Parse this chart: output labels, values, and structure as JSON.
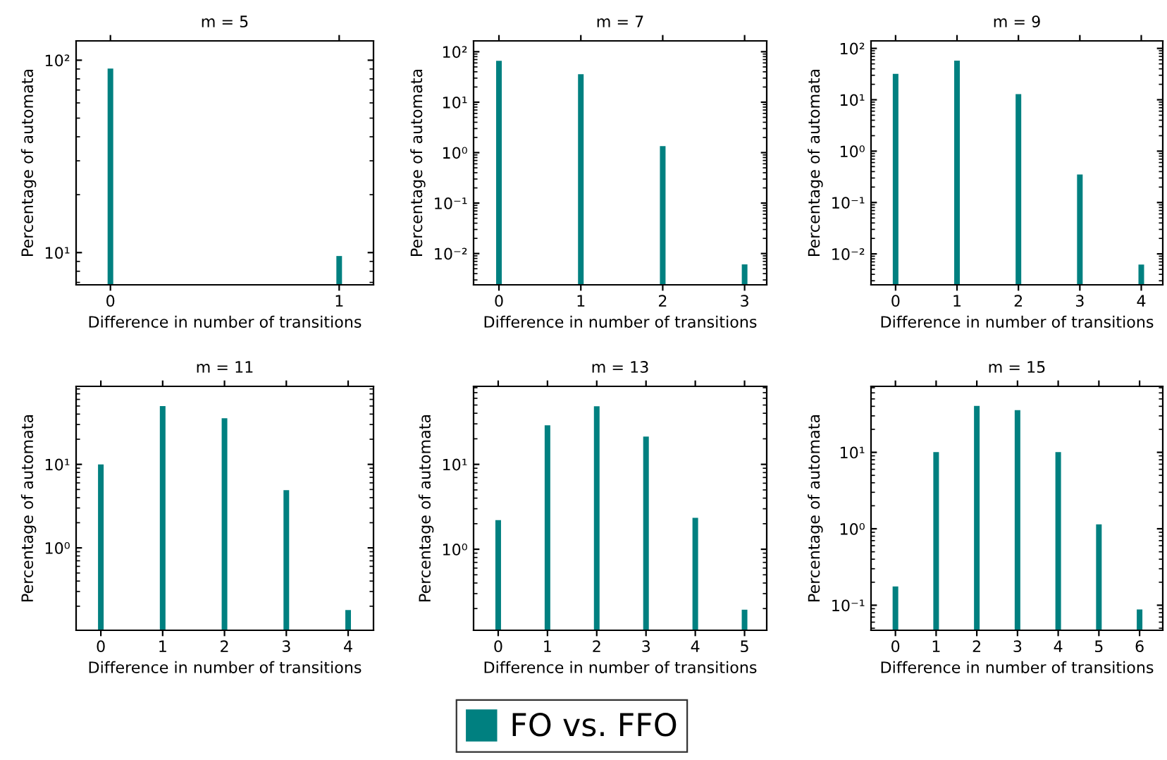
{
  "chart_data": [
    {
      "type": "bar",
      "title": "m = 5",
      "xlabel": "Difference in number of transitions",
      "ylabel": "Percentage of automata",
      "x": [
        0,
        1
      ],
      "series": [
        {
          "name": "FO vs. FFO",
          "color": "#008080",
          "values": [
            90.4,
            9.6
          ]
        }
      ],
      "xlim": [
        -0.15,
        1.15
      ],
      "xticks": [
        0,
        1
      ],
      "ylim": [
        6.8,
        126
      ],
      "yticks": [
        {
          "value": 10,
          "label": "10¹"
        },
        {
          "value": 100,
          "label": "10²"
        }
      ],
      "log": "y",
      "legend": "bottom"
    },
    {
      "type": "bar",
      "title": "m = 7",
      "xlabel": "Difference in number of transitions",
      "ylabel": "Percentage of automata",
      "x": [
        0,
        1,
        2,
        3
      ],
      "series": [
        {
          "color": "#008080",
          "values": [
            66,
            36,
            1.35,
            0.0061
          ]
        }
      ],
      "xlim": [
        -0.31,
        3.27
      ],
      "xticks": [
        0,
        1,
        2,
        3
      ],
      "ylim": [
        0.0024,
        164
      ],
      "yticks": [
        {
          "value": 0.01,
          "label": "10⁻²"
        },
        {
          "value": 0.1,
          "label": "10⁻¹"
        },
        {
          "value": 1,
          "label": "10⁰"
        },
        {
          "value": 10,
          "label": "10¹"
        },
        {
          "value": 100,
          "label": "10²"
        }
      ],
      "log": "y"
    },
    {
      "type": "bar",
      "title": "m = 9",
      "xlabel": "Difference in number of transitions",
      "ylabel": "Percentage of automata",
      "x": [
        0,
        1,
        2,
        3,
        4
      ],
      "series": [
        {
          "color": "#008080",
          "values": [
            32,
            58,
            12.9,
            0.35,
            0.0062
          ]
        }
      ],
      "xlim": [
        -0.4,
        4.35
      ],
      "xticks": [
        0,
        1,
        2,
        3,
        4
      ],
      "ylim": [
        0.0025,
        140
      ],
      "yticks": [
        {
          "value": 0.01,
          "label": "10⁻²"
        },
        {
          "value": 0.1,
          "label": "10⁻¹"
        },
        {
          "value": 1,
          "label": "10⁰"
        },
        {
          "value": 10,
          "label": "10¹"
        },
        {
          "value": 100,
          "label": "10²"
        }
      ],
      "log": "y"
    },
    {
      "type": "bar",
      "title": "m = 11",
      "xlabel": "Difference in number of transitions",
      "ylabel": "Percentage of automata",
      "x": [
        0,
        1,
        2,
        3,
        4
      ],
      "series": [
        {
          "color": "#008080",
          "values": [
            10,
            50,
            35.6,
            4.9,
            0.18
          ]
        }
      ],
      "xlim": [
        -0.4,
        4.41
      ],
      "xticks": [
        0,
        1,
        2,
        3,
        4
      ],
      "ylim": [
        0.103,
        86
      ],
      "yticks": [
        {
          "value": 1,
          "label": "10⁰"
        },
        {
          "value": 10,
          "label": "10¹"
        }
      ],
      "log": "y"
    },
    {
      "type": "bar",
      "title": "m = 13",
      "xlabel": "Difference in number of transitions",
      "ylabel": "Percentage of automata",
      "x": [
        0,
        1,
        2,
        3,
        4,
        5
      ],
      "series": [
        {
          "color": "#008080",
          "values": [
            2.2,
            28.8,
            48.4,
            21.2,
            2.34,
            0.194
          ]
        }
      ],
      "xlim": [
        -0.5,
        5.45
      ],
      "xticks": [
        0,
        1,
        2,
        3,
        4,
        5
      ],
      "ylim": [
        0.111,
        83
      ],
      "yticks": [
        {
          "value": 1,
          "label": "10⁰"
        },
        {
          "value": 10,
          "label": "10¹"
        }
      ],
      "log": "y"
    },
    {
      "type": "bar",
      "title": "m = 15",
      "xlabel": "Difference in number of transitions",
      "ylabel": "Percentage of automata",
      "x": [
        0,
        1,
        2,
        3,
        4,
        5,
        6
      ],
      "series": [
        {
          "color": "#008080",
          "values": [
            0.176,
            10.1,
            40.5,
            35.6,
            10.1,
            1.14,
            0.088
          ]
        }
      ],
      "xlim": [
        -0.6,
        6.57
      ],
      "xticks": [
        0,
        1,
        2,
        3,
        4,
        5,
        6
      ],
      "ylim": [
        0.047,
        73
      ],
      "yticks": [
        {
          "value": 0.1,
          "label": "10⁻¹"
        },
        {
          "value": 1,
          "label": "10⁰"
        },
        {
          "value": 10,
          "label": "10¹"
        }
      ],
      "log": "y"
    }
  ]
}
